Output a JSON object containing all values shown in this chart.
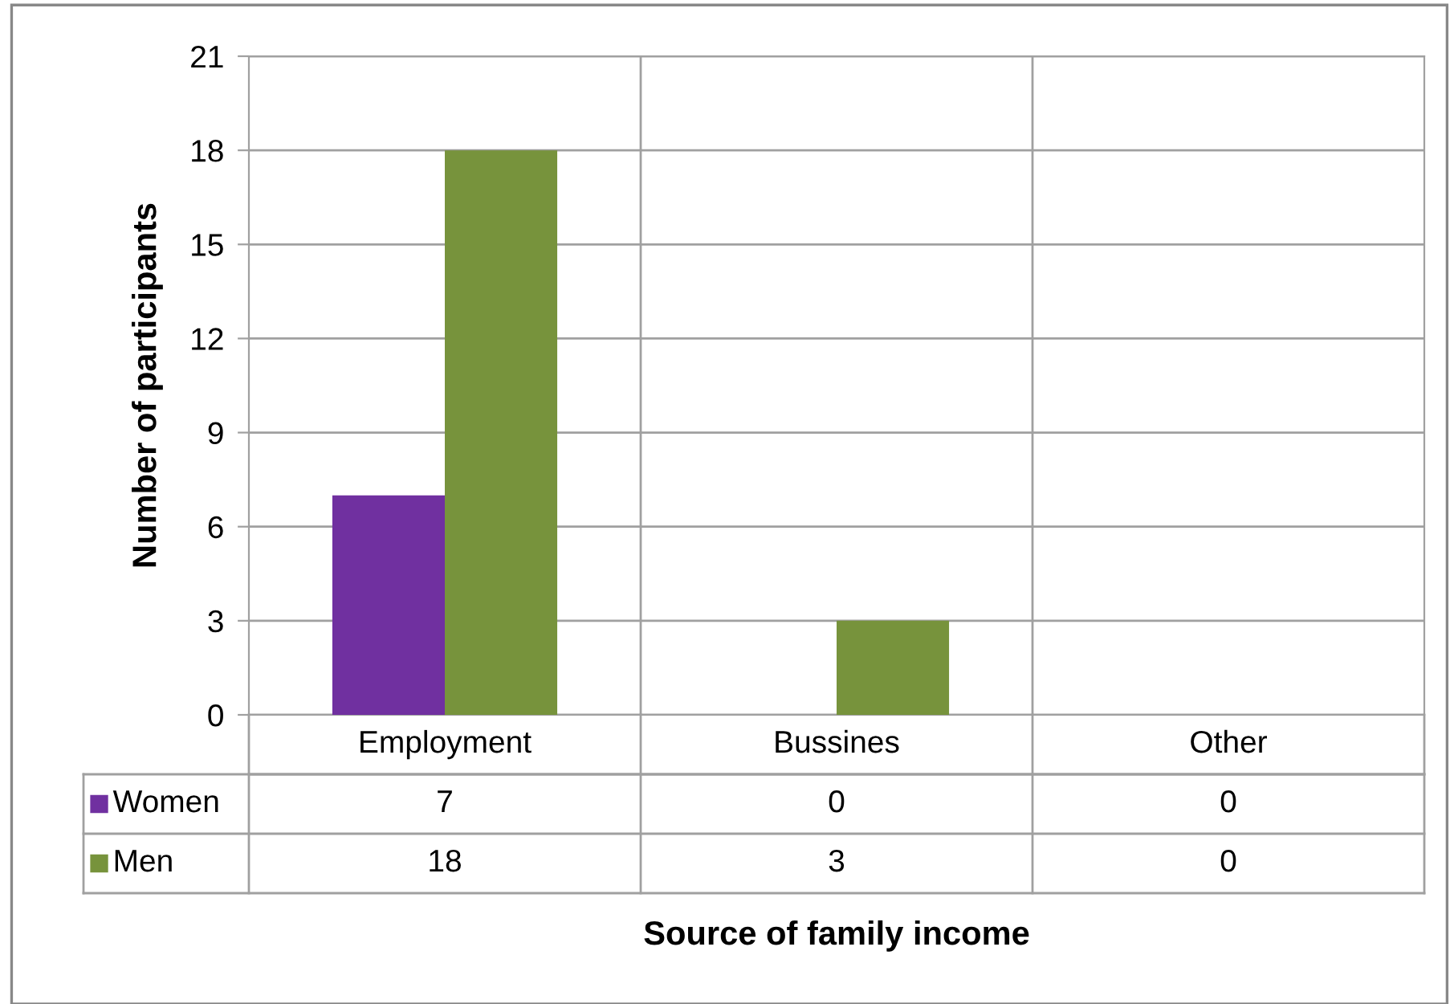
{
  "chart_data": {
    "type": "bar",
    "xlabel": "Source of family income",
    "ylabel": "Number of participants",
    "categories": [
      "Employment",
      "Bussines",
      "Other"
    ],
    "series": [
      {
        "name": "Women",
        "color": "#7030a0",
        "values": [
          7,
          0,
          0
        ]
      },
      {
        "name": "Men",
        "color": "#77933c",
        "values": [
          18,
          3,
          0
        ]
      }
    ],
    "ylim": [
      0,
      21
    ],
    "yticks": [
      0,
      3,
      6,
      9,
      12,
      15,
      18,
      21
    ],
    "grid": "y",
    "data_labels": true,
    "legend": "bottom left"
  }
}
